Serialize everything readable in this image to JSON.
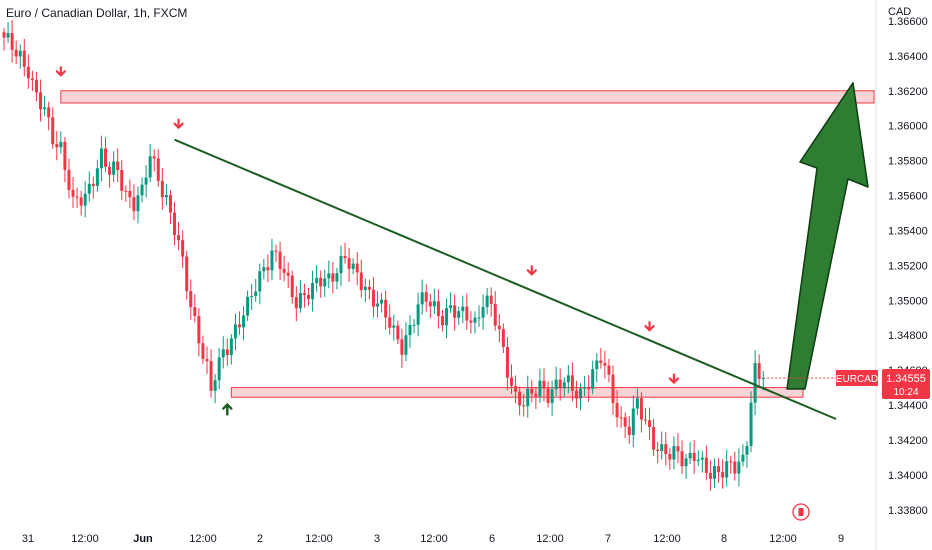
{
  "header": {
    "title": "Euro / Canadian Dollar, 1h, FXCM",
    "currency": "CAD"
  },
  "price_tag": {
    "symbol": "EURCAD",
    "price": "1.34555",
    "countdown": "10:24",
    "color": "#f23645"
  },
  "colors": {
    "up": "#089981",
    "down": "#f23645",
    "trendline": "#1b5e20",
    "zone_fill": "#f7c6c9",
    "zone_border": "#f23645",
    "arrow_fill": "#2e7d32",
    "arrow_border": "#0f3d12",
    "marker_down": "#f23645",
    "marker_up": "#1b5e20"
  },
  "chart_data": {
    "type": "candlestick",
    "title": "Euro / Canadian Dollar, 1h, FXCM",
    "symbol": "EURCAD",
    "ylabel": "CAD",
    "ylim": [
      1.3373,
      1.3672
    ],
    "y_ticks": [
      "1.33800",
      "1.34000",
      "1.34200",
      "1.34400",
      "1.34600",
      "1.34800",
      "1.35000",
      "1.35200",
      "1.35400",
      "1.35600",
      "1.35800",
      "1.36000",
      "1.36200",
      "1.36400",
      "1.36600"
    ],
    "x_ticks": [
      {
        "label": "31",
        "bold": false
      },
      {
        "label": "12:00",
        "bold": false
      },
      {
        "label": "Jun",
        "bold": true
      },
      {
        "label": "12:00",
        "bold": false
      },
      {
        "label": "2",
        "bold": false
      },
      {
        "label": "12:00",
        "bold": false
      },
      {
        "label": "3",
        "bold": false
      },
      {
        "label": "12:00",
        "bold": false
      },
      {
        "label": "6",
        "bold": false
      },
      {
        "label": "12:00",
        "bold": false
      },
      {
        "label": "7",
        "bold": false
      },
      {
        "label": "12:00",
        "bold": false
      },
      {
        "label": "8",
        "bold": false
      },
      {
        "label": "12:00",
        "bold": false
      },
      {
        "label": "9",
        "bold": false
      }
    ],
    "last_price": 1.34555,
    "close_path": [
      [
        0,
        1.3648
      ],
      [
        2,
        1.3646
      ],
      [
        4,
        1.3641
      ],
      [
        6,
        1.3632
      ],
      [
        7,
        1.3622
      ],
      [
        8,
        1.3615
      ],
      [
        10,
        1.3608
      ],
      [
        12,
        1.3595
      ],
      [
        14,
        1.3588
      ],
      [
        16,
        1.3565
      ],
      [
        17,
        1.3553
      ],
      [
        18,
        1.3556
      ],
      [
        20,
        1.356
      ],
      [
        22,
        1.3572
      ],
      [
        24,
        1.3582
      ],
      [
        26,
        1.3572
      ],
      [
        28,
        1.3575
      ],
      [
        30,
        1.3562
      ],
      [
        32,
        1.3556
      ],
      [
        34,
        1.356
      ],
      [
        36,
        1.3583
      ],
      [
        38,
        1.3572
      ],
      [
        40,
        1.3558
      ],
      [
        42,
        1.354
      ],
      [
        44,
        1.352
      ],
      [
        46,
        1.3498
      ],
      [
        48,
        1.348
      ],
      [
        50,
        1.346
      ],
      [
        51,
        1.3446
      ],
      [
        52,
        1.3456
      ],
      [
        54,
        1.347
      ],
      [
        56,
        1.348
      ],
      [
        58,
        1.3488
      ],
      [
        60,
        1.3495
      ],
      [
        62,
        1.3508
      ],
      [
        64,
        1.352
      ],
      [
        66,
        1.3528
      ],
      [
        68,
        1.352
      ],
      [
        70,
        1.3508
      ],
      [
        72,
        1.35
      ],
      [
        74,
        1.3505
      ],
      [
        76,
        1.3506
      ],
      [
        78,
        1.351
      ],
      [
        80,
        1.3512
      ],
      [
        82,
        1.352
      ],
      [
        84,
        1.3525
      ],
      [
        86,
        1.3515
      ],
      [
        88,
        1.351
      ],
      [
        90,
        1.3505
      ],
      [
        92,
        1.35
      ],
      [
        94,
        1.349
      ],
      [
        96,
        1.348
      ],
      [
        98,
        1.3475
      ],
      [
        100,
        1.3485
      ],
      [
        102,
        1.3496
      ],
      [
        104,
        1.35
      ],
      [
        106,
        1.3496
      ],
      [
        108,
        1.3492
      ],
      [
        110,
        1.3495
      ],
      [
        112,
        1.349
      ],
      [
        114,
        1.3492
      ],
      [
        116,
        1.3488
      ],
      [
        118,
        1.35
      ],
      [
        120,
        1.3495
      ],
      [
        122,
        1.348
      ],
      [
        124,
        1.3462
      ],
      [
        126,
        1.3445
      ],
      [
        128,
        1.344
      ],
      [
        130,
        1.3445
      ],
      [
        132,
        1.3452
      ],
      [
        134,
        1.3448
      ],
      [
        136,
        1.345
      ],
      [
        138,
        1.3452
      ],
      [
        140,
        1.345
      ],
      [
        142,
        1.3448
      ],
      [
        144,
        1.3454
      ],
      [
        146,
        1.346
      ],
      [
        147,
        1.3466
      ],
      [
        148,
        1.3462
      ],
      [
        150,
        1.3446
      ],
      [
        152,
        1.343
      ],
      [
        154,
        1.3425
      ],
      [
        156,
        1.344
      ],
      [
        158,
        1.3432
      ],
      [
        160,
        1.342
      ],
      [
        162,
        1.3412
      ],
      [
        164,
        1.341
      ],
      [
        166,
        1.3413
      ],
      [
        168,
        1.341
      ],
      [
        170,
        1.3412
      ],
      [
        172,
        1.3403
      ],
      [
        174,
        1.34
      ],
      [
        176,
        1.3404
      ],
      [
        178,
        1.3406
      ],
      [
        180,
        1.3403
      ],
      [
        182,
        1.3406
      ],
      [
        183,
        1.342
      ],
      [
        184,
        1.3445
      ],
      [
        185,
        1.3462
      ],
      [
        186,
        1.3458
      ],
      [
        187,
        1.34555
      ]
    ],
    "annotations": {
      "resistance_zone": [
        1.3613,
        1.362
      ],
      "support_zone": [
        1.34445,
        1.345
      ],
      "trendline": [
        [
          1.3592
        ],
        [
          1.3435
        ]
      ],
      "target": 1.362,
      "swing_high_markers": [
        1.3622,
        1.3592,
        1.3508,
        1.3476,
        1.3446
      ],
      "swing_low_marker": 1.3446
    }
  }
}
